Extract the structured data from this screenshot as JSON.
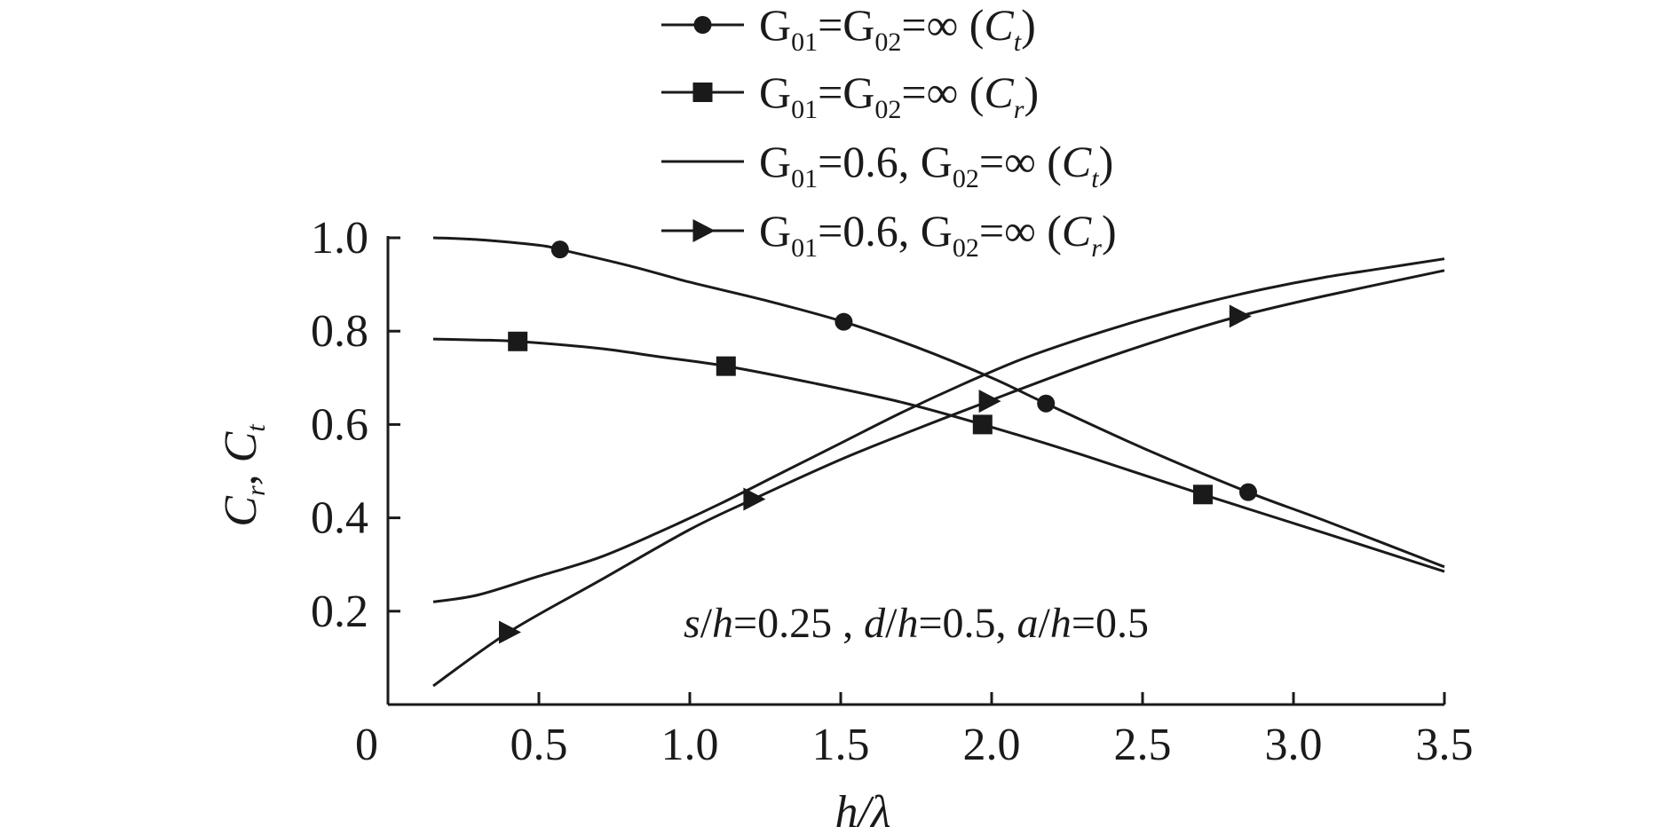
{
  "chart_data": {
    "type": "line",
    "xlabel": "h/λ",
    "ylabel": "Cr, Ct",
    "ylabel_parts": [
      "C",
      "r",
      ", ",
      "C",
      "t"
    ],
    "xlim": [
      0,
      3.5
    ],
    "ylim": [
      0,
      1.0
    ],
    "xticks": [
      0,
      0.5,
      1.0,
      1.5,
      2.0,
      2.5,
      3.0,
      3.5
    ],
    "xtick_labels": [
      "0",
      "0.5",
      "1.0",
      "1.5",
      "2.0",
      "2.5",
      "3.0",
      "3.5"
    ],
    "yticks": [
      0.2,
      0.4,
      0.6,
      0.8,
      1.0
    ],
    "ytick_labels": [
      "0.2",
      "0.4",
      "0.6",
      "0.8",
      "1.0"
    ],
    "grid": false,
    "legend_position": "top",
    "annotation": "s/h=0.25 , d/h=0.5, a/h=0.5",
    "annotation_parts": [
      {
        "t": "s",
        "i": true
      },
      {
        "t": "/",
        "i": false
      },
      {
        "t": "h",
        "i": true
      },
      {
        "t": "=0.25 , ",
        "i": false
      },
      {
        "t": "d",
        "i": true
      },
      {
        "t": "/",
        "i": false
      },
      {
        "t": "h",
        "i": true
      },
      {
        "t": "=0.5, ",
        "i": false
      },
      {
        "t": "a",
        "i": true
      },
      {
        "t": "/",
        "i": false
      },
      {
        "t": "h",
        "i": true
      },
      {
        "t": "=0.5",
        "i": false
      }
    ],
    "series": [
      {
        "name": "G01=G02=∞ (Ct)",
        "name_parts": [
          {
            "t": "G",
            "s": false
          },
          {
            "t": "01",
            "s": true
          },
          {
            "t": "=G",
            "s": false
          },
          {
            "t": "02",
            "s": true
          },
          {
            "t": "=∞ (",
            "s": false
          },
          {
            "t": "C",
            "s": false,
            "i": true
          },
          {
            "t": "t",
            "s": true,
            "i": true
          },
          {
            "t": ")",
            "s": false
          }
        ],
        "marker": "circle",
        "x": [
          0.15,
          0.3,
          0.5,
          0.57,
          0.8,
          1.0,
          1.25,
          1.51,
          1.75,
          2.0,
          2.18,
          2.5,
          2.85,
          3.1,
          3.5
        ],
        "y": [
          1.0,
          0.996,
          0.984,
          0.975,
          0.94,
          0.905,
          0.866,
          0.82,
          0.766,
          0.7,
          0.645,
          0.55,
          0.455,
          0.395,
          0.295
        ],
        "marker_x": [
          0.57,
          1.51,
          2.18,
          2.85
        ],
        "marker_y": [
          0.975,
          0.82,
          0.645,
          0.455
        ]
      },
      {
        "name": "G01=G02=∞ (Cr)",
        "name_parts": [
          {
            "t": "G",
            "s": false
          },
          {
            "t": "01",
            "s": true
          },
          {
            "t": "=G",
            "s": false
          },
          {
            "t": "02",
            "s": true
          },
          {
            "t": "=∞ (",
            "s": false
          },
          {
            "t": "C",
            "s": false,
            "i": true
          },
          {
            "t": "r",
            "s": true,
            "i": true
          },
          {
            "t": ")",
            "s": false
          }
        ],
        "marker": "square",
        "x": [
          0.15,
          0.3,
          0.43,
          0.7,
          0.9,
          1.12,
          1.4,
          1.7,
          1.97,
          2.3,
          2.7,
          3.1,
          3.5
        ],
        "y": [
          0.783,
          0.781,
          0.778,
          0.763,
          0.745,
          0.725,
          0.69,
          0.648,
          0.6,
          0.535,
          0.45,
          0.368,
          0.285
        ],
        "marker_x": [
          0.43,
          1.12,
          1.97,
          2.7
        ],
        "marker_y": [
          0.778,
          0.725,
          0.6,
          0.45
        ]
      },
      {
        "name": "G01=0.6, G02=∞ (Ct)",
        "name_parts": [
          {
            "t": "G",
            "s": false
          },
          {
            "t": "01",
            "s": true
          },
          {
            "t": "=0.6, G",
            "s": false
          },
          {
            "t": "02",
            "s": true
          },
          {
            "t": "=∞ (",
            "s": false
          },
          {
            "t": "C",
            "s": false,
            "i": true
          },
          {
            "t": "t",
            "s": true,
            "i": true
          },
          {
            "t": ")",
            "s": false
          }
        ],
        "marker": "none",
        "x": [
          0.15,
          0.3,
          0.5,
          0.7,
          0.9,
          1.1,
          1.3,
          1.5,
          1.7,
          1.9,
          2.1,
          2.3,
          2.5,
          2.7,
          2.9,
          3.1,
          3.3,
          3.5
        ],
        "y": [
          0.22,
          0.235,
          0.275,
          0.315,
          0.37,
          0.43,
          0.495,
          0.56,
          0.625,
          0.685,
          0.74,
          0.785,
          0.825,
          0.86,
          0.89,
          0.915,
          0.935,
          0.955
        ],
        "marker_x": [],
        "marker_y": []
      },
      {
        "name": "G01=0.6, G02=∞ (Cr)",
        "name_parts": [
          {
            "t": "G",
            "s": false
          },
          {
            "t": "01",
            "s": true
          },
          {
            "t": "=0.6, G",
            "s": false
          },
          {
            "t": "02",
            "s": true
          },
          {
            "t": "=∞ (",
            "s": false
          },
          {
            "t": "C",
            "s": false,
            "i": true
          },
          {
            "t": "r",
            "s": true,
            "i": true
          },
          {
            "t": ")",
            "s": false
          }
        ],
        "marker": "triangle-right",
        "x": [
          0.15,
          0.4,
          0.7,
          1.0,
          1.21,
          1.5,
          1.75,
          1.99,
          2.3,
          2.6,
          2.82,
          3.1,
          3.5
        ],
        "y": [
          0.04,
          0.155,
          0.265,
          0.375,
          0.44,
          0.525,
          0.59,
          0.65,
          0.725,
          0.79,
          0.832,
          0.875,
          0.93
        ],
        "marker_x": [
          0.4,
          1.21,
          1.99,
          2.82
        ],
        "marker_y": [
          0.155,
          0.44,
          0.65,
          0.832
        ]
      }
    ]
  }
}
